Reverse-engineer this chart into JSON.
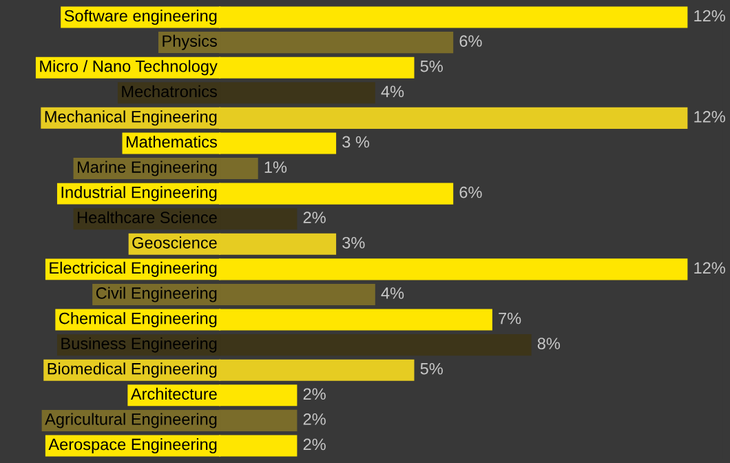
{
  "chart_data": {
    "type": "bar",
    "orientation": "horizontal",
    "categories": [
      "Software engineering",
      "Physics",
      "Micro / Nano Technology",
      "Mechatronics",
      "Mechanical Engineering",
      "Mathematics",
      "Marine Engineering",
      "Industrial Engineering",
      "Healthcare Science",
      "Geoscience",
      "Electricical Engineering",
      "Civil Engineering",
      "Chemical Engineering",
      "Business Engineering",
      "Biomedical Engineering",
      "Architecture",
      "Agricultural Engineering",
      "Aerospace Engineering"
    ],
    "values": [
      12,
      6,
      5,
      4,
      12,
      3,
      1,
      6,
      2,
      3,
      12,
      4,
      7,
      8,
      5,
      2,
      2,
      2
    ],
    "value_labels": [
      "12%",
      "6%",
      "5%",
      "4%",
      "12%",
      "3 %",
      "1%",
      "6%",
      "2%",
      "3%",
      "12%",
      "4%",
      "7%",
      "8%",
      "5%",
      "2%",
      "2%",
      "2%"
    ],
    "colors": [
      "#ffe600",
      "#7a6c2a",
      "#ffe600",
      "#3d3519",
      "#e6cc22",
      "#ffe600",
      "#7a6c2a",
      "#ffe600",
      "#3d3519",
      "#e6cc22",
      "#ffe600",
      "#7a6c2a",
      "#ffe600",
      "#3d3519",
      "#e6cc22",
      "#ffe600",
      "#7a6c2a",
      "#ffe600"
    ]
  }
}
